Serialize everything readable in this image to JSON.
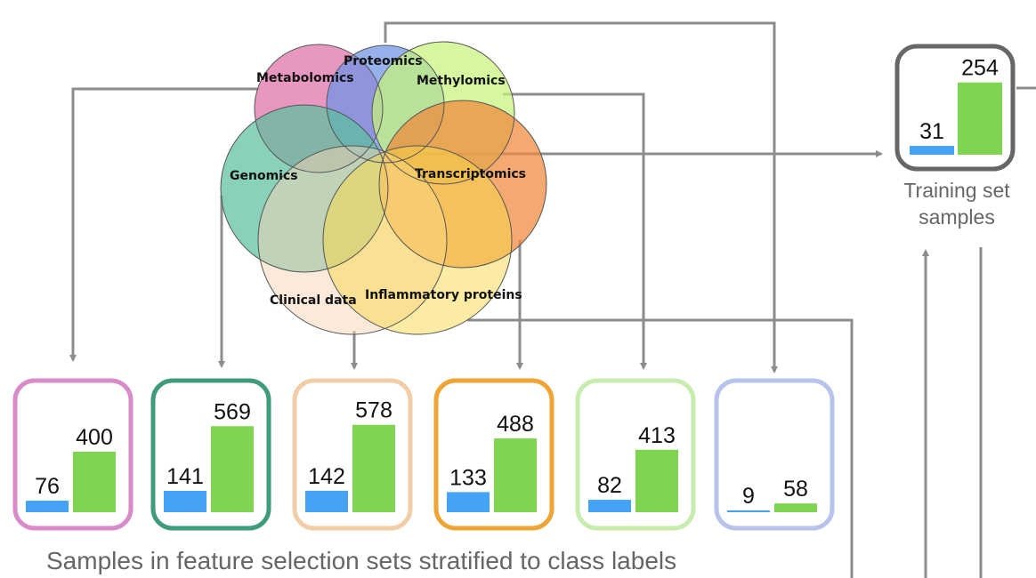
{
  "venn": {
    "sets": [
      {
        "label": "Metabolomics",
        "color": "#de6fa8"
      },
      {
        "label": "Proteomics",
        "color": "#6f93e6"
      },
      {
        "label": "Methylomics",
        "color": "#c6f47a"
      },
      {
        "label": "Genomics",
        "color": "#5cbf9c"
      },
      {
        "label": "Transcriptomics",
        "color": "#f0883a"
      },
      {
        "label": "Clinical data",
        "color": "#f8d3b5"
      },
      {
        "label": "Inflammatory proteins",
        "color": "#f7d84a"
      }
    ]
  },
  "sample_boxes": [
    {
      "border_color": "#d98bc9",
      "class0": 76,
      "class1": 400
    },
    {
      "border_color": "#3f9b7e",
      "class0": 141,
      "class1": 569
    },
    {
      "border_color": "#f1cda8",
      "class0": 142,
      "class1": 578
    },
    {
      "border_color": "#eea535",
      "class0": 133,
      "class1": 488
    },
    {
      "border_color": "#c8ecae",
      "class0": 82,
      "class1": 413
    },
    {
      "border_color": "#b7c3ea",
      "class0": 9,
      "class1": 58
    }
  ],
  "training": {
    "border_color": "#666666",
    "class0": 31,
    "class1": 254,
    "caption_line1": "Training set",
    "caption_line2": "samples"
  },
  "bar_colors": {
    "class0": "#45a3f5",
    "class1": "#7fd552"
  },
  "caption": "Samples in feature selection sets stratified to class labels"
}
